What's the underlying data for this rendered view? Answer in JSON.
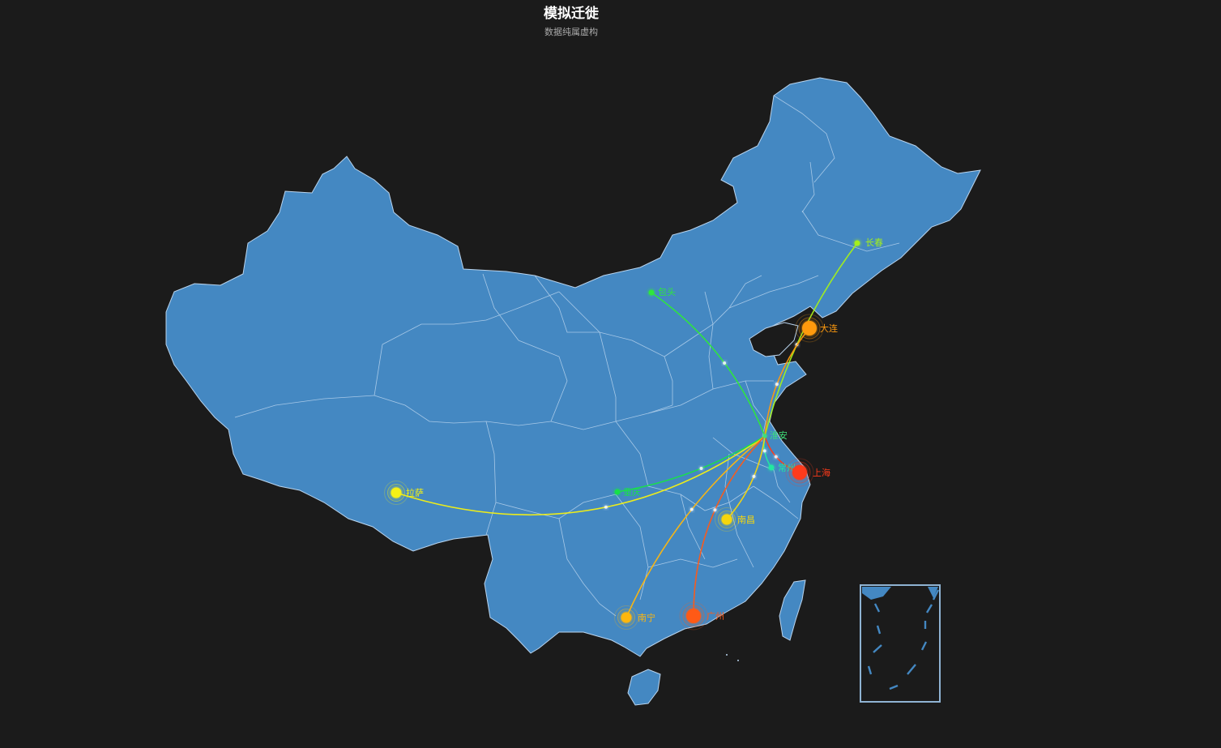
{
  "title": "模拟迁徙",
  "subtitle": "数据纯属虚构",
  "colors": {
    "background": "#1b1b1b",
    "land": "#4488c2",
    "border": "#b9d4ee"
  },
  "hub": {
    "name": "淮安",
    "color": "#3ee07a"
  },
  "cities": [
    {
      "id": "lasa",
      "name": "拉萨",
      "color": "#f5f112",
      "size": "medium"
    },
    {
      "id": "chongqing",
      "name": "重庆",
      "color": "#19e04a",
      "size": "small"
    },
    {
      "id": "baotou",
      "name": "包头",
      "color": "#2ee83a",
      "size": "small"
    },
    {
      "id": "changchun",
      "name": "长春",
      "color": "#a4f01a",
      "size": "small"
    },
    {
      "id": "dalian",
      "name": "大连",
      "color": "#ff9a0e",
      "size": "large"
    },
    {
      "id": "changzhou",
      "name": "常州",
      "color": "#23e8a0",
      "size": "small"
    },
    {
      "id": "shanghai",
      "name": "上海",
      "color": "#ff3a1a",
      "size": "large"
    },
    {
      "id": "nanchang",
      "name": "南昌",
      "color": "#f5d60e",
      "size": "medium"
    },
    {
      "id": "nanning",
      "name": "南宁",
      "color": "#ffb70e",
      "size": "medium"
    },
    {
      "id": "guangzhou",
      "name": "广州",
      "color": "#ff5a16",
      "size": "large"
    }
  ]
}
